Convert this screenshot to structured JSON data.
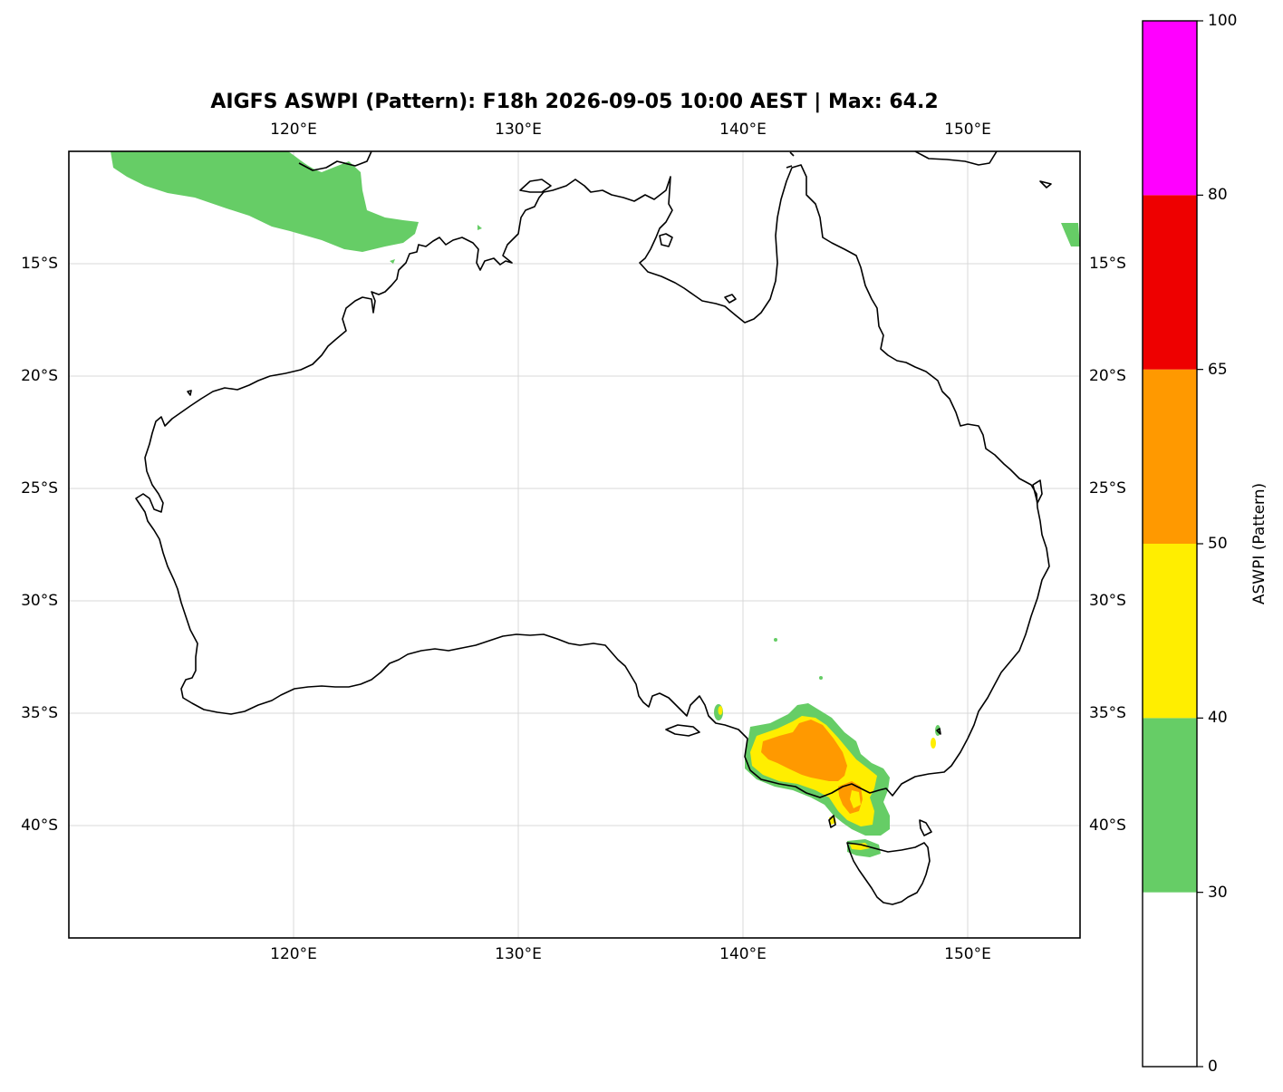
{
  "title": "AIGFS ASWPI (Pattern): F18h 2026-09-05 10:00 AEST | Max: 64.2",
  "map": {
    "lon_range": [
      110,
      155
    ],
    "lat_range": [
      -45,
      -10
    ],
    "lon_ticks": [
      {
        "value": 120,
        "label": "120°E"
      },
      {
        "value": 130,
        "label": "130°E"
      },
      {
        "value": 140,
        "label": "140°E"
      },
      {
        "value": 150,
        "label": "150°E"
      }
    ],
    "lat_ticks": [
      {
        "value": -15,
        "label": "15°S"
      },
      {
        "value": -20,
        "label": "20°S"
      },
      {
        "value": -25,
        "label": "25°S"
      },
      {
        "value": -30,
        "label": "30°S"
      },
      {
        "value": -35,
        "label": "35°S"
      },
      {
        "value": -40,
        "label": "40°S"
      }
    ],
    "gridlines": true,
    "coastline_color": "#000000",
    "shaded_regions": [
      {
        "name": "Timor Sea band",
        "level": "30-40",
        "lon_min": 112,
        "lon_max": 125.6,
        "lat_min": -14.6,
        "lat_max": -10
      },
      {
        "name": "Coral Sea patch",
        "level": "30-40",
        "lon_min": 154.2,
        "lon_max": 155,
        "lat_min": -13.3,
        "lat_max": -12.2
      },
      {
        "name": "Victoria outer",
        "level": "30-40",
        "lon_min": 140.2,
        "lon_max": 146.6,
        "lat_min": -41.4,
        "lat_max": -34.6
      },
      {
        "name": "Victoria core",
        "level": "50-65",
        "lon_min": 140.7,
        "lon_max": 145.6,
        "lat_min": -40.2,
        "lat_max": -35.4
      },
      {
        "name": "Bass Strait",
        "level": "30-40",
        "lon_min": 144.6,
        "lon_max": 146.2,
        "lat_min": -42.4,
        "lat_max": -41.4
      }
    ],
    "max_value": 64.2
  },
  "colorbar": {
    "label": "ASWPI (Pattern)",
    "boundaries": [
      0,
      30,
      40,
      50,
      65,
      80,
      100
    ],
    "tick_labels": [
      "0",
      "30",
      "40",
      "50",
      "65",
      "80",
      "100"
    ],
    "colors": [
      "#ffffff",
      "#66cd66",
      "#ffee00",
      "#ff9900",
      "#ee0000",
      "#ff00ff"
    ]
  }
}
